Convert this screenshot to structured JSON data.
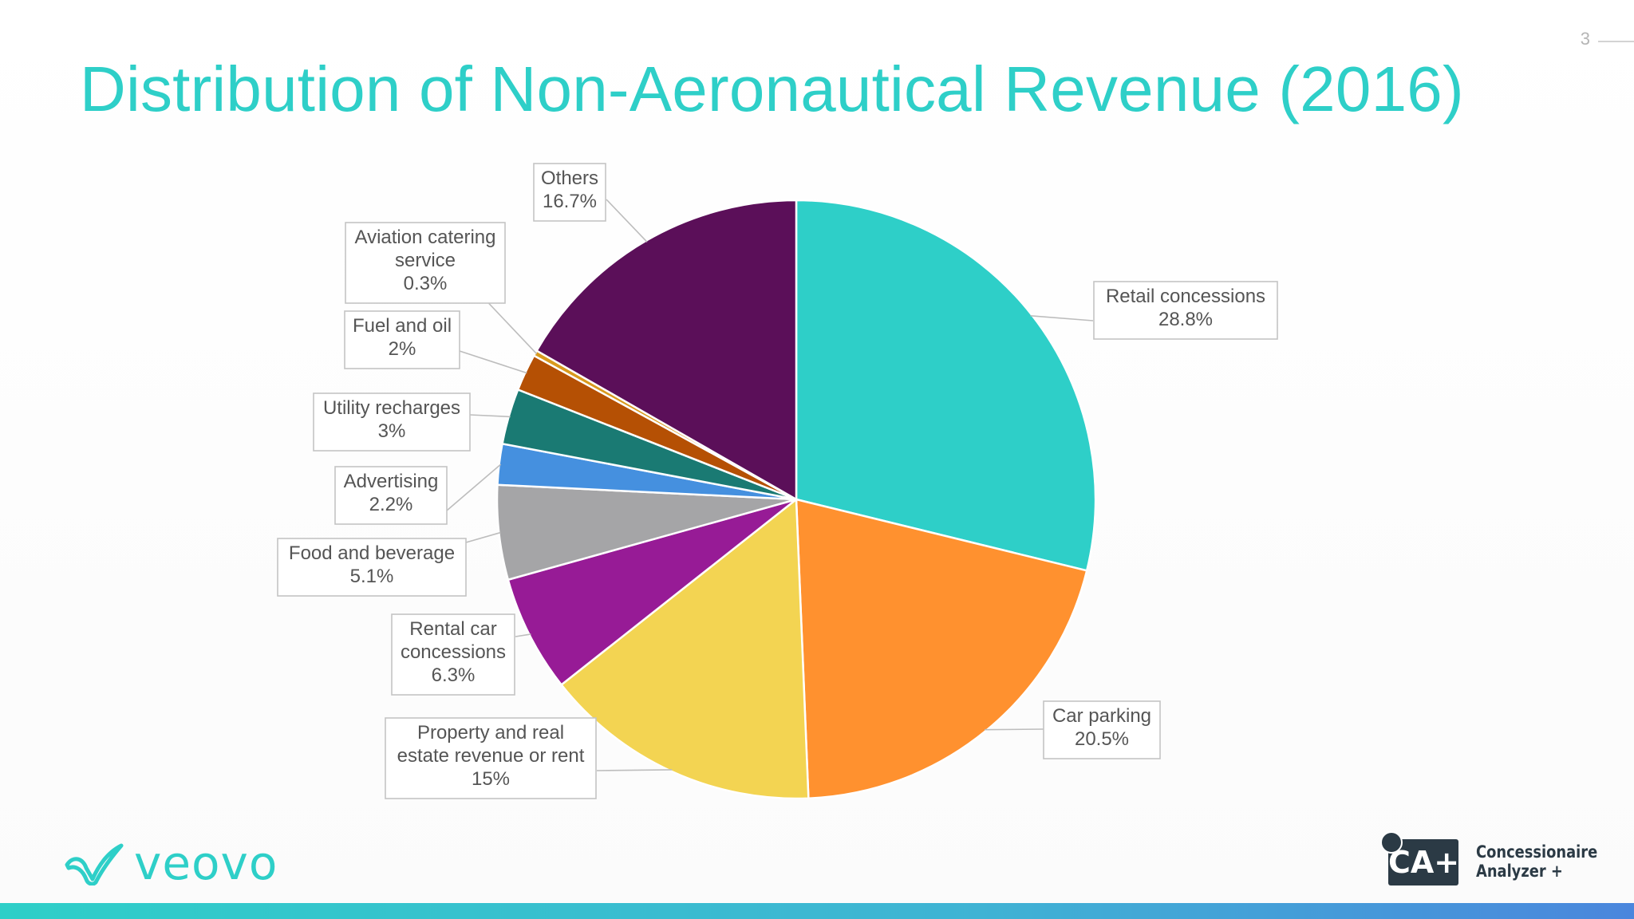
{
  "slide": {
    "title": "Distribution of Non-Aeronautical Revenue (2016)",
    "page_number": "3"
  },
  "logos": {
    "left_brand": "veovo",
    "right_badge": "CA+",
    "right_name_line1": "Concessionaire",
    "right_name_line2": "Analyzer +"
  },
  "chart_data": {
    "type": "pie",
    "title": "Distribution of Non-Aeronautical Revenue (2016)",
    "start": "12 o'clock, clockwise",
    "slices": [
      {
        "lines": [
          "Retail concessions"
        ],
        "value": 28.8,
        "value_label": "28.8%",
        "color": "#2ecfc8"
      },
      {
        "lines": [
          "Car parking"
        ],
        "value": 20.5,
        "value_label": "20.5%",
        "color": "#ff912f"
      },
      {
        "lines": [
          "Property and real",
          "estate revenue or rent"
        ],
        "value": 15,
        "value_label": "15%",
        "color": "#f3d452"
      },
      {
        "lines": [
          "Rental car",
          "concessions"
        ],
        "value": 6.3,
        "value_label": "6.3%",
        "color": "#971b96"
      },
      {
        "lines": [
          "Food and beverage"
        ],
        "value": 5.1,
        "value_label": "5.1%",
        "color": "#a5a5a7"
      },
      {
        "lines": [
          "Advertising"
        ],
        "value": 2.2,
        "value_label": "2.2%",
        "color": "#4590df"
      },
      {
        "lines": [
          "Utility recharges"
        ],
        "value": 3,
        "value_label": "3%",
        "color": "#1a7a73"
      },
      {
        "lines": [
          "Fuel and oil"
        ],
        "value": 2,
        "value_label": "2%",
        "color": "#b55004"
      },
      {
        "lines": [
          "Aviation catering",
          "service"
        ],
        "value": 0.3,
        "value_label": "0.3%",
        "color": "#d99a1e"
      },
      {
        "lines": [
          "Others"
        ],
        "value": 16.7,
        "value_label": "16.7%",
        "color": "#5b0f59"
      }
    ],
    "legend": "none (callout labels)"
  },
  "colors": {
    "title": "#2ecfc8",
    "leader": "#bdbdbd",
    "label_border": "#c4c4c4",
    "label_text": "#555555"
  }
}
